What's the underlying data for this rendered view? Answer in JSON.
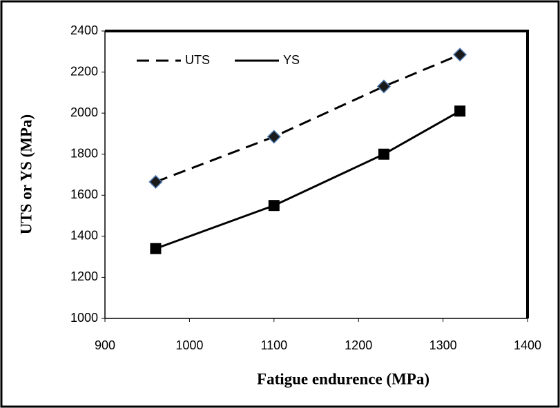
{
  "chart_data": {
    "type": "line",
    "xlabel": "Fatigue endurence (MPa)",
    "ylabel": "UTS or YS (MPa)",
    "x": [
      960,
      1100,
      1230,
      1320
    ],
    "series": [
      {
        "name": "UTS",
        "color": "#000000",
        "line_style": "dashed",
        "marker": "diamond",
        "values": [
          1665,
          1885,
          2130,
          2285
        ]
      },
      {
        "name": "YS",
        "color": "#000000",
        "line_style": "solid",
        "marker": "square",
        "values": [
          1340,
          1550,
          1800,
          2010
        ]
      }
    ],
    "xlim": [
      900,
      1400
    ],
    "xticks": [
      900,
      1000,
      1100,
      1200,
      1300,
      1400
    ],
    "ylim": [
      1000,
      2400
    ],
    "yticks": [
      1000,
      1200,
      1400,
      1600,
      1800,
      2000,
      2200,
      2400
    ],
    "grid": false,
    "legend": "top-left"
  }
}
